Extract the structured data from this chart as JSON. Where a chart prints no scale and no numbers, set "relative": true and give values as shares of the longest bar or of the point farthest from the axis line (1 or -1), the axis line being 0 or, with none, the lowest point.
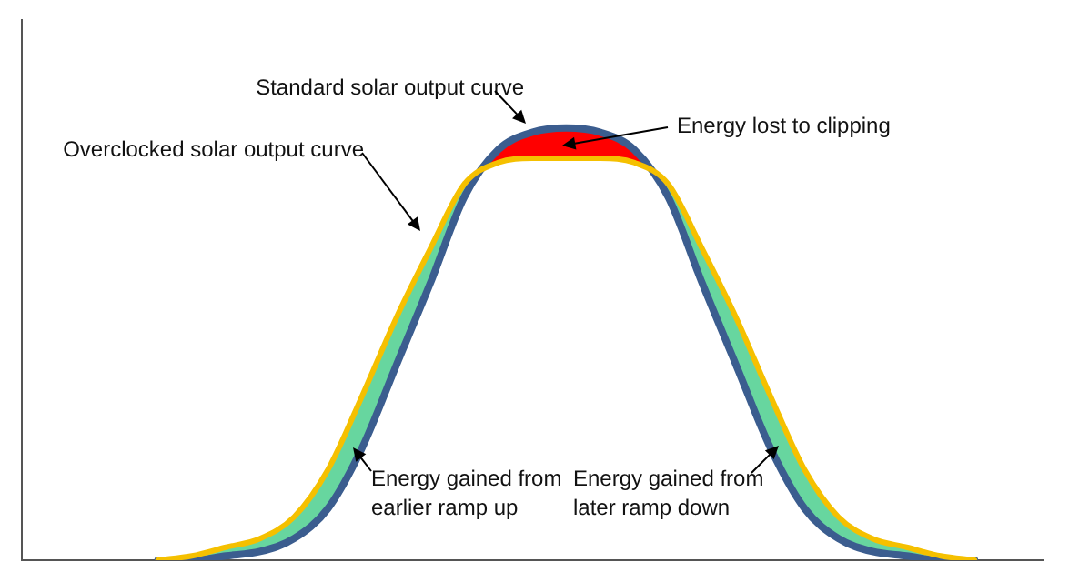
{
  "chart_data": {
    "type": "line",
    "relative": true,
    "categories": [
      null,
      null,
      null,
      null,
      null,
      null,
      null,
      null,
      null,
      null,
      null,
      null,
      null,
      null,
      null,
      null,
      null,
      null,
      null,
      null,
      null,
      null,
      null,
      null,
      null,
      null,
      null,
      null,
      null,
      null,
      null
    ],
    "series": [
      {
        "name": "Standard solar output curve",
        "color": "#3b5d8f",
        "values": [
          null,
          null,
          null,
          null,
          0,
          0,
          0.01,
          0.02,
          0.05,
          0.12,
          0.26,
          0.45,
          0.64,
          0.84,
          0.95,
          0.99,
          1.0,
          0.99,
          0.95,
          0.84,
          0.64,
          0.45,
          0.26,
          0.12,
          0.05,
          0.02,
          0.01,
          0,
          0,
          null,
          null
        ]
      },
      {
        "name": "Overclocked solar output curve",
        "color": "#f5c000",
        "values": [
          null,
          null,
          null,
          null,
          0,
          0.01,
          0.03,
          0.05,
          0.1,
          0.21,
          0.38,
          0.56,
          0.72,
          0.87,
          0.92,
          0.93,
          0.93,
          0.93,
          0.92,
          0.87,
          0.72,
          0.56,
          0.38,
          0.21,
          0.1,
          0.05,
          0.03,
          0.01,
          0,
          null,
          null
        ]
      }
    ],
    "annotations": [
      "Energy lost to clipping",
      "Energy gained from earlier ramp up",
      "Energy gained from later ramp down"
    ],
    "legend": false,
    "grid": false,
    "marker": "none",
    "line_style": "solid"
  }
}
